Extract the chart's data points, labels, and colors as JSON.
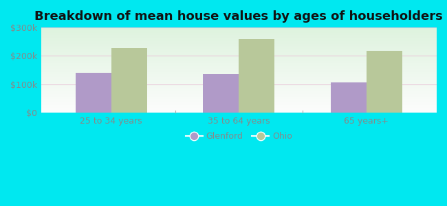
{
  "title": "Breakdown of mean house values by ages of householders",
  "categories": [
    "25 to 34 years",
    "35 to 64 years",
    "65 years+"
  ],
  "glenford_values": [
    140000,
    135000,
    108000
  ],
  "ohio_values": [
    228000,
    258000,
    218000
  ],
  "glenford_color": "#b09ac8",
  "ohio_color": "#b8c89a",
  "ylim": [
    0,
    300000
  ],
  "yticks": [
    0,
    100000,
    200000,
    300000
  ],
  "ytick_labels": [
    "$0",
    "$100k",
    "$200k",
    "$300k"
  ],
  "background_outer": "#00e8f0",
  "legend_glenford": "Glenford",
  "legend_ohio": "Ohio",
  "bar_width": 0.28,
  "title_fontsize": 13,
  "tick_fontsize": 9,
  "legend_fontsize": 9,
  "tick_color": "#888888",
  "grid_color": "#e8c8d8"
}
